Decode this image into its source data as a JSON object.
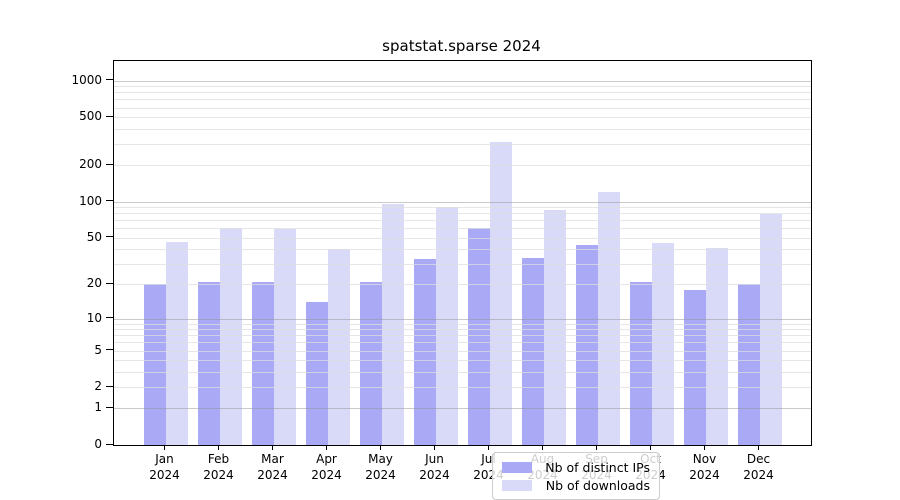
{
  "chart_data": {
    "type": "bar",
    "title": "spatstat.sparse 2024",
    "y_scale": "log1p",
    "categories": [
      "Jan",
      "Feb",
      "Mar",
      "Apr",
      "May",
      "Jun",
      "Jul",
      "Aug",
      "Sep",
      "Oct",
      "Nov",
      "Dec"
    ],
    "x_sublabel": "2024",
    "series": [
      {
        "name": "Nb of distinct IPs",
        "color": "#a9a9f5",
        "values": [
          20,
          21,
          21,
          14,
          21,
          33,
          60,
          34,
          43,
          21,
          18,
          20
        ]
      },
      {
        "name": "Nb of downloads",
        "color": "#d9d9f8",
        "values": [
          46,
          60,
          59,
          40,
          95,
          90,
          310,
          85,
          120,
          45,
          41,
          79
        ]
      }
    ],
    "yticks": [
      0,
      1,
      2,
      5,
      10,
      20,
      50,
      100,
      200,
      500,
      1000
    ],
    "ylim": [
      0,
      1450
    ],
    "grid": true,
    "grid_major_at": [
      1,
      10,
      100,
      1000
    ],
    "legend_position": "inside-bottom-center"
  },
  "colors": {
    "background": "#ffffff",
    "axis": "#000000",
    "text": "#000000",
    "grid_major": "#c8c8c8",
    "grid_minor": "#ececec",
    "legend_border": "#cccccc"
  }
}
